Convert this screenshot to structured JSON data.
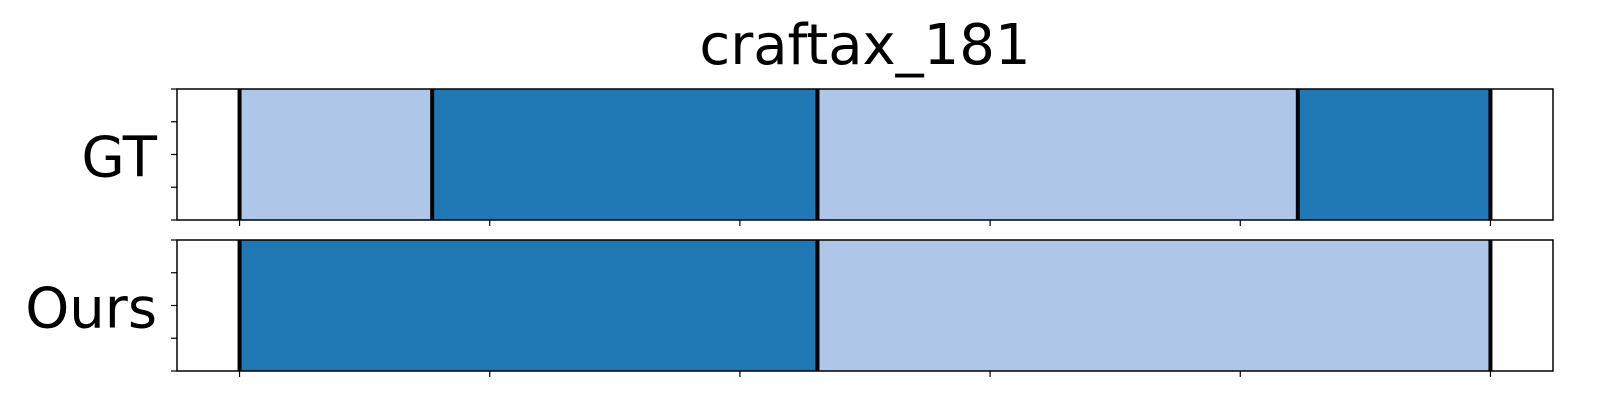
{
  "chart_data": {
    "type": "bar",
    "title": "craftax_181",
    "xlim": [
      -50,
      1050
    ],
    "x_ticks": [
      0,
      200,
      400,
      600,
      800,
      1000
    ],
    "colors": {
      "light": "#aec7e8",
      "dark": "#1f77b4",
      "boundary": "#000000"
    },
    "rows": [
      {
        "label": "GT",
        "segments": [
          {
            "start": 0,
            "end": 154,
            "color": "light"
          },
          {
            "start": 154,
            "end": 462,
            "color": "dark"
          },
          {
            "start": 462,
            "end": 846,
            "color": "light"
          },
          {
            "start": 846,
            "end": 1000,
            "color": "dark"
          }
        ]
      },
      {
        "label": "Ours",
        "segments": [
          {
            "start": 0,
            "end": 462,
            "color": "dark"
          },
          {
            "start": 462,
            "end": 1000,
            "color": "light"
          }
        ]
      }
    ]
  }
}
